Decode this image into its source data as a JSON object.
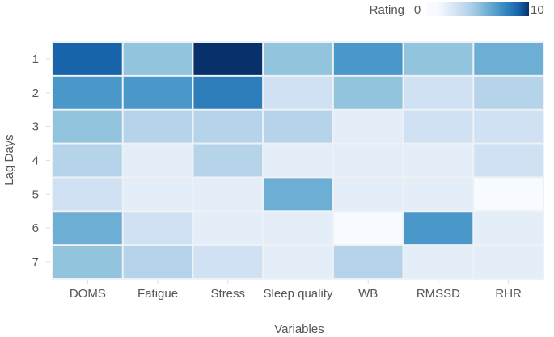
{
  "chart_data": {
    "type": "heatmap",
    "xlabel": "Variables",
    "ylabel": "Lag Days",
    "x": [
      "DOMS",
      "Fatigue",
      "Stress",
      "Sleep quality",
      "WB",
      "RMSSD",
      "RHR"
    ],
    "y": [
      "1",
      "2",
      "3",
      "4",
      "5",
      "6",
      "7"
    ],
    "values": [
      [
        9,
        5,
        10,
        5,
        7,
        5,
        6
      ],
      [
        7,
        7,
        8,
        3,
        5,
        3,
        4
      ],
      [
        5,
        4,
        4,
        4,
        2,
        3,
        3
      ],
      [
        4,
        2,
        4,
        2,
        2,
        2,
        3
      ],
      [
        3,
        2,
        2,
        6,
        2,
        2,
        1
      ],
      [
        6,
        3,
        2,
        2,
        1,
        7,
        2
      ],
      [
        5,
        4,
        3,
        2,
        4,
        2,
        2
      ]
    ],
    "colorbar": {
      "title": "Rating",
      "min": 0,
      "max": 10,
      "min_label": "0",
      "max_label": "10",
      "placement": "top-right"
    },
    "colorscale": [
      "#f7fbff",
      "#f7fbff",
      "#e3eef8",
      "#cfe1f2",
      "#b5d4e9",
      "#93c4de",
      "#6daed5",
      "#4a98c9",
      "#2e7ebc",
      "#1764ab",
      "#08306b"
    ]
  }
}
